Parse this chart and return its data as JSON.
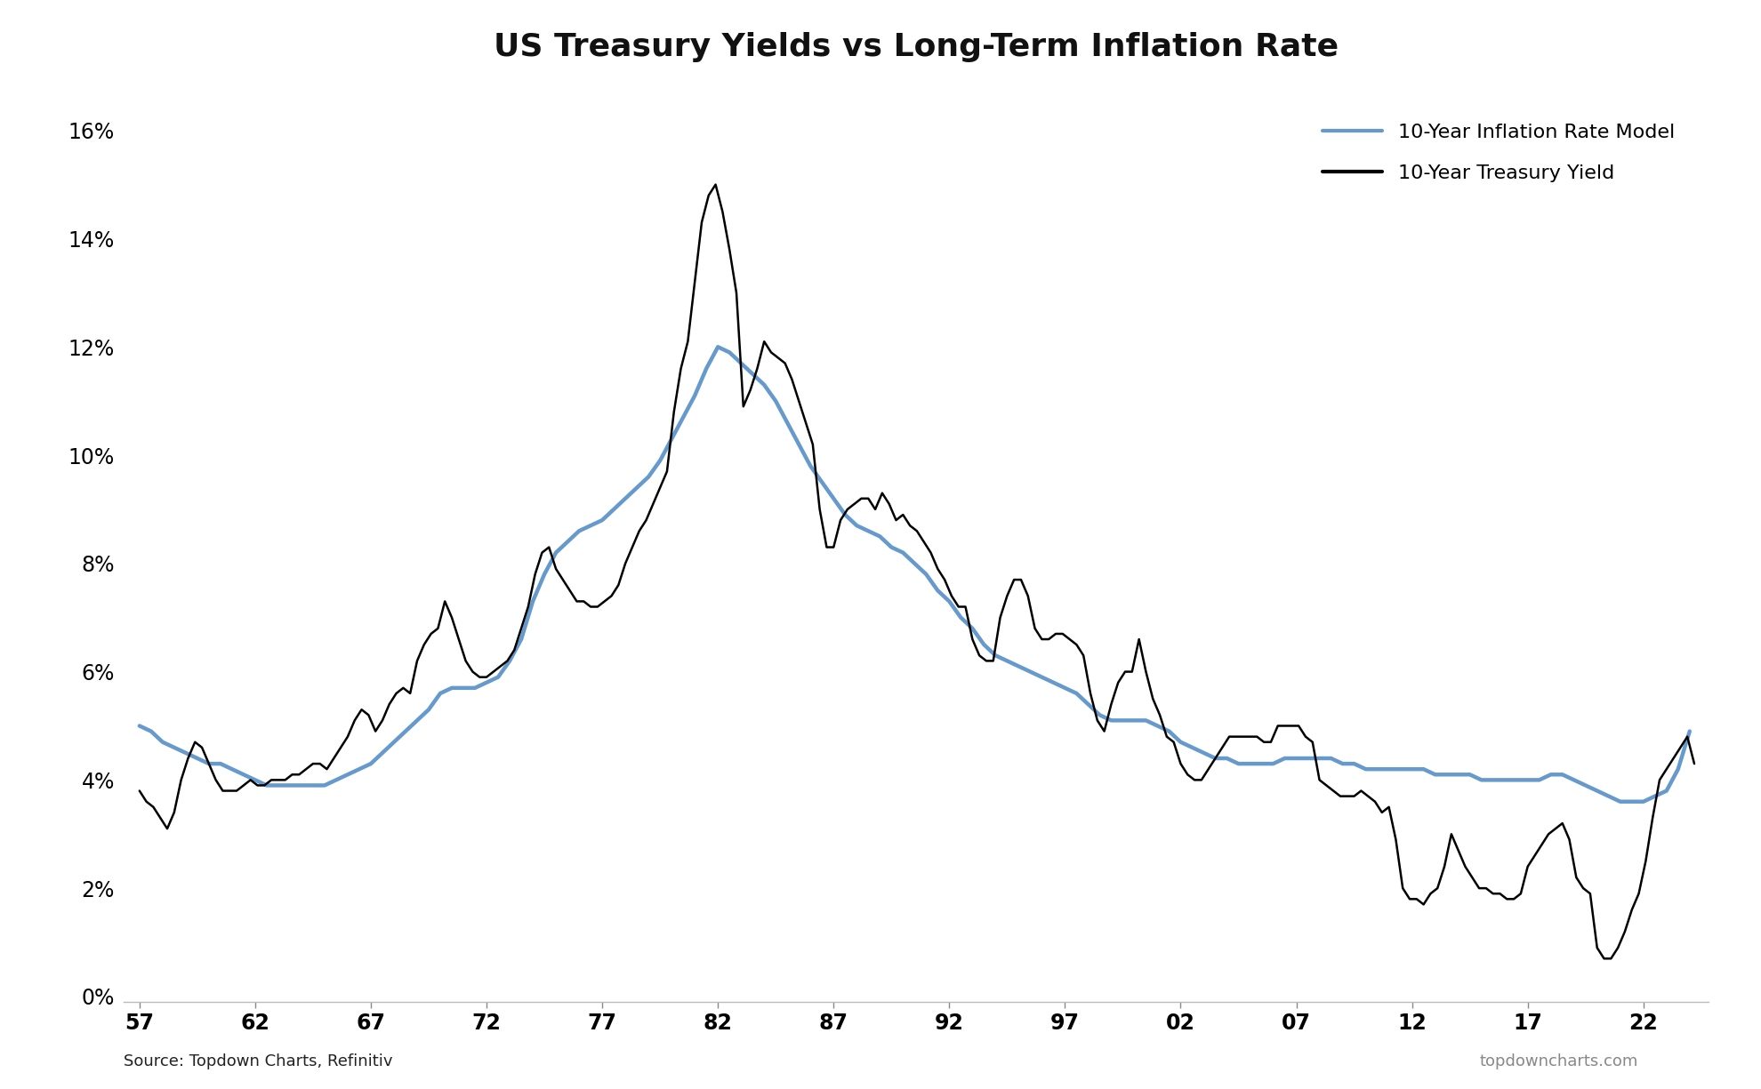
{
  "title": "US Treasury Yields vs Long-Term Inflation Rate",
  "source_left": "Source: Topdown Charts, Refinitiv",
  "source_right": "topdowncharts.com",
  "legend_treasury": "10-Year Treasury Yield",
  "legend_inflation": "10-Year Inflation Rate Model",
  "treasury_color": "#000000",
  "inflation_color": "#6699cc",
  "background_color": "#ffffff",
  "ylim": [
    -0.001,
    0.168
  ],
  "yticks": [
    0.0,
    0.02,
    0.04,
    0.06,
    0.08,
    0.1,
    0.12,
    0.14,
    0.16
  ],
  "xticks": [
    1957,
    1962,
    1967,
    1972,
    1977,
    1982,
    1987,
    1992,
    1997,
    2002,
    2007,
    2012,
    2017,
    2022
  ],
  "xlim": [
    1956.3,
    2024.8
  ],
  "treasury_x": [
    1957.0,
    1957.3,
    1957.6,
    1957.9,
    1958.2,
    1958.5,
    1958.8,
    1959.1,
    1959.4,
    1959.7,
    1960.0,
    1960.3,
    1960.6,
    1960.9,
    1961.2,
    1961.5,
    1961.8,
    1962.1,
    1962.4,
    1962.7,
    1963.0,
    1963.3,
    1963.6,
    1963.9,
    1964.2,
    1964.5,
    1964.8,
    1965.1,
    1965.4,
    1965.7,
    1966.0,
    1966.3,
    1966.6,
    1966.9,
    1967.2,
    1967.5,
    1967.8,
    1968.1,
    1968.4,
    1968.7,
    1969.0,
    1969.3,
    1969.6,
    1969.9,
    1970.2,
    1970.5,
    1970.8,
    1971.1,
    1971.4,
    1971.7,
    1972.0,
    1972.3,
    1972.6,
    1972.9,
    1973.2,
    1973.5,
    1973.8,
    1974.1,
    1974.4,
    1974.7,
    1975.0,
    1975.3,
    1975.6,
    1975.9,
    1976.2,
    1976.5,
    1976.8,
    1977.1,
    1977.4,
    1977.7,
    1978.0,
    1978.3,
    1978.6,
    1978.9,
    1979.2,
    1979.5,
    1979.8,
    1980.1,
    1980.4,
    1980.7,
    1981.0,
    1981.3,
    1981.6,
    1981.9,
    1982.2,
    1982.5,
    1982.8,
    1983.1,
    1983.4,
    1983.7,
    1984.0,
    1984.3,
    1984.6,
    1984.9,
    1985.2,
    1985.5,
    1985.8,
    1986.1,
    1986.4,
    1986.7,
    1987.0,
    1987.3,
    1987.6,
    1987.9,
    1988.2,
    1988.5,
    1988.8,
    1989.1,
    1989.4,
    1989.7,
    1990.0,
    1990.3,
    1990.6,
    1990.9,
    1991.2,
    1991.5,
    1991.8,
    1992.1,
    1992.4,
    1992.7,
    1993.0,
    1993.3,
    1993.6,
    1993.9,
    1994.2,
    1994.5,
    1994.8,
    1995.1,
    1995.4,
    1995.7,
    1996.0,
    1996.3,
    1996.6,
    1996.9,
    1997.2,
    1997.5,
    1997.8,
    1998.1,
    1998.4,
    1998.7,
    1999.0,
    1999.3,
    1999.6,
    1999.9,
    2000.2,
    2000.5,
    2000.8,
    2001.1,
    2001.4,
    2001.7,
    2002.0,
    2002.3,
    2002.6,
    2002.9,
    2003.2,
    2003.5,
    2003.8,
    2004.1,
    2004.4,
    2004.7,
    2005.0,
    2005.3,
    2005.6,
    2005.9,
    2006.2,
    2006.5,
    2006.8,
    2007.1,
    2007.4,
    2007.7,
    2008.0,
    2008.3,
    2008.6,
    2008.9,
    2009.2,
    2009.5,
    2009.8,
    2010.1,
    2010.4,
    2010.7,
    2011.0,
    2011.3,
    2011.6,
    2011.9,
    2012.2,
    2012.5,
    2012.8,
    2013.1,
    2013.4,
    2013.7,
    2014.0,
    2014.3,
    2014.6,
    2014.9,
    2015.2,
    2015.5,
    2015.8,
    2016.1,
    2016.4,
    2016.7,
    2017.0,
    2017.3,
    2017.6,
    2017.9,
    2018.2,
    2018.5,
    2018.8,
    2019.1,
    2019.4,
    2019.7,
    2020.0,
    2020.3,
    2020.6,
    2020.9,
    2021.2,
    2021.5,
    2021.8,
    2022.1,
    2022.4,
    2022.7,
    2023.0,
    2023.3,
    2023.6,
    2023.9,
    2024.2
  ],
  "treasury_y": [
    0.038,
    0.036,
    0.035,
    0.033,
    0.031,
    0.034,
    0.04,
    0.044,
    0.047,
    0.046,
    0.043,
    0.04,
    0.038,
    0.038,
    0.038,
    0.039,
    0.04,
    0.039,
    0.039,
    0.04,
    0.04,
    0.04,
    0.041,
    0.041,
    0.042,
    0.043,
    0.043,
    0.042,
    0.044,
    0.046,
    0.048,
    0.051,
    0.053,
    0.052,
    0.049,
    0.051,
    0.054,
    0.056,
    0.057,
    0.056,
    0.062,
    0.065,
    0.067,
    0.068,
    0.073,
    0.07,
    0.066,
    0.062,
    0.06,
    0.059,
    0.059,
    0.06,
    0.061,
    0.062,
    0.064,
    0.068,
    0.072,
    0.078,
    0.082,
    0.083,
    0.079,
    0.077,
    0.075,
    0.073,
    0.073,
    0.072,
    0.072,
    0.073,
    0.074,
    0.076,
    0.08,
    0.083,
    0.086,
    0.088,
    0.091,
    0.094,
    0.097,
    0.108,
    0.116,
    0.121,
    0.132,
    0.143,
    0.148,
    0.15,
    0.145,
    0.138,
    0.13,
    0.109,
    0.112,
    0.116,
    0.121,
    0.119,
    0.118,
    0.117,
    0.114,
    0.11,
    0.106,
    0.102,
    0.09,
    0.083,
    0.083,
    0.088,
    0.09,
    0.091,
    0.092,
    0.092,
    0.09,
    0.093,
    0.091,
    0.088,
    0.089,
    0.087,
    0.086,
    0.084,
    0.082,
    0.079,
    0.077,
    0.074,
    0.072,
    0.072,
    0.066,
    0.063,
    0.062,
    0.062,
    0.07,
    0.074,
    0.077,
    0.077,
    0.074,
    0.068,
    0.066,
    0.066,
    0.067,
    0.067,
    0.066,
    0.065,
    0.063,
    0.056,
    0.051,
    0.049,
    0.054,
    0.058,
    0.06,
    0.06,
    0.066,
    0.06,
    0.055,
    0.052,
    0.048,
    0.047,
    0.043,
    0.041,
    0.04,
    0.04,
    0.042,
    0.044,
    0.046,
    0.048,
    0.048,
    0.048,
    0.048,
    0.048,
    0.047,
    0.047,
    0.05,
    0.05,
    0.05,
    0.05,
    0.048,
    0.047,
    0.04,
    0.039,
    0.038,
    0.037,
    0.037,
    0.037,
    0.038,
    0.037,
    0.036,
    0.034,
    0.035,
    0.029,
    0.02,
    0.018,
    0.018,
    0.017,
    0.019,
    0.02,
    0.024,
    0.03,
    0.027,
    0.024,
    0.022,
    0.02,
    0.02,
    0.019,
    0.019,
    0.018,
    0.018,
    0.019,
    0.024,
    0.026,
    0.028,
    0.03,
    0.031,
    0.032,
    0.029,
    0.022,
    0.02,
    0.019,
    0.009,
    0.007,
    0.007,
    0.009,
    0.012,
    0.016,
    0.019,
    0.025,
    0.033,
    0.04,
    0.042,
    0.044,
    0.046,
    0.048,
    0.043
  ],
  "inflation_x": [
    1957.0,
    1957.5,
    1958.0,
    1958.5,
    1959.0,
    1959.5,
    1960.0,
    1960.5,
    1961.0,
    1961.5,
    1962.0,
    1962.5,
    1963.0,
    1963.5,
    1964.0,
    1964.5,
    1965.0,
    1965.5,
    1966.0,
    1966.5,
    1967.0,
    1967.5,
    1968.0,
    1968.5,
    1969.0,
    1969.5,
    1970.0,
    1970.5,
    1971.0,
    1971.5,
    1972.0,
    1972.5,
    1973.0,
    1973.5,
    1974.0,
    1974.5,
    1975.0,
    1975.5,
    1976.0,
    1976.5,
    1977.0,
    1977.5,
    1978.0,
    1978.5,
    1979.0,
    1979.5,
    1980.0,
    1980.5,
    1981.0,
    1981.5,
    1982.0,
    1982.5,
    1983.0,
    1983.5,
    1984.0,
    1984.5,
    1985.0,
    1985.5,
    1986.0,
    1986.5,
    1987.0,
    1987.5,
    1988.0,
    1988.5,
    1989.0,
    1989.5,
    1990.0,
    1990.5,
    1991.0,
    1991.5,
    1992.0,
    1992.5,
    1993.0,
    1993.5,
    1994.0,
    1994.5,
    1995.0,
    1995.5,
    1996.0,
    1996.5,
    1997.0,
    1997.5,
    1998.0,
    1998.5,
    1999.0,
    1999.5,
    2000.0,
    2000.5,
    2001.0,
    2001.5,
    2002.0,
    2002.5,
    2003.0,
    2003.5,
    2004.0,
    2004.5,
    2005.0,
    2005.5,
    2006.0,
    2006.5,
    2007.0,
    2007.5,
    2008.0,
    2008.5,
    2009.0,
    2009.5,
    2010.0,
    2010.5,
    2011.0,
    2011.5,
    2012.0,
    2012.5,
    2013.0,
    2013.5,
    2014.0,
    2014.5,
    2015.0,
    2015.5,
    2016.0,
    2016.5,
    2017.0,
    2017.5,
    2018.0,
    2018.5,
    2019.0,
    2019.5,
    2020.0,
    2020.5,
    2021.0,
    2021.5,
    2022.0,
    2022.5,
    2023.0,
    2023.5,
    2024.0
  ],
  "inflation_y": [
    0.05,
    0.049,
    0.047,
    0.046,
    0.045,
    0.044,
    0.043,
    0.043,
    0.042,
    0.041,
    0.04,
    0.039,
    0.039,
    0.039,
    0.039,
    0.039,
    0.039,
    0.04,
    0.041,
    0.042,
    0.043,
    0.045,
    0.047,
    0.049,
    0.051,
    0.053,
    0.056,
    0.057,
    0.057,
    0.057,
    0.058,
    0.059,
    0.062,
    0.066,
    0.073,
    0.078,
    0.082,
    0.084,
    0.086,
    0.087,
    0.088,
    0.09,
    0.092,
    0.094,
    0.096,
    0.099,
    0.103,
    0.107,
    0.111,
    0.116,
    0.12,
    0.119,
    0.117,
    0.115,
    0.113,
    0.11,
    0.106,
    0.102,
    0.098,
    0.095,
    0.092,
    0.089,
    0.087,
    0.086,
    0.085,
    0.083,
    0.082,
    0.08,
    0.078,
    0.075,
    0.073,
    0.07,
    0.068,
    0.065,
    0.063,
    0.062,
    0.061,
    0.06,
    0.059,
    0.058,
    0.057,
    0.056,
    0.054,
    0.052,
    0.051,
    0.051,
    0.051,
    0.051,
    0.05,
    0.049,
    0.047,
    0.046,
    0.045,
    0.044,
    0.044,
    0.043,
    0.043,
    0.043,
    0.043,
    0.044,
    0.044,
    0.044,
    0.044,
    0.044,
    0.043,
    0.043,
    0.042,
    0.042,
    0.042,
    0.042,
    0.042,
    0.042,
    0.041,
    0.041,
    0.041,
    0.041,
    0.04,
    0.04,
    0.04,
    0.04,
    0.04,
    0.04,
    0.041,
    0.041,
    0.04,
    0.039,
    0.038,
    0.037,
    0.036,
    0.036,
    0.036,
    0.037,
    0.038,
    0.042,
    0.049
  ],
  "treasury_linewidth": 1.8,
  "inflation_linewidth": 3.2,
  "title_fontsize": 26,
  "tick_fontsize": 17,
  "legend_fontsize": 16,
  "source_fontsize": 13
}
